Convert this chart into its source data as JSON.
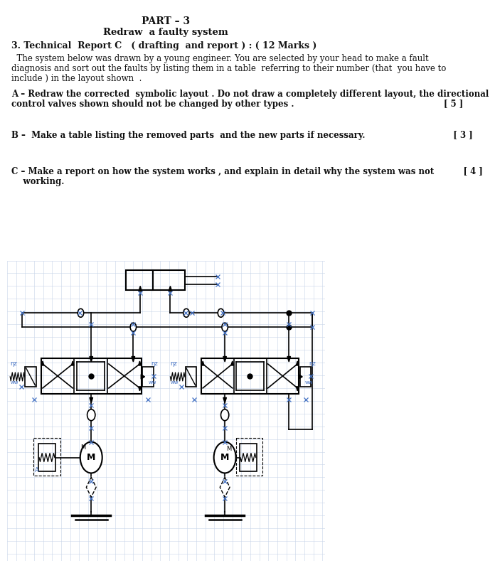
{
  "title1": "PART – 3",
  "title2": "Redraw  a faulty system",
  "section_title": "3. Technical  Report C   ( drafting  and report ) : ( 12 Marks )",
  "para1_line1": "  The system below was drawn by a young engineer. You are selected by your head to make a fault",
  "para1_line2": "diagnosis and sort out the faults by listing them in a table  referring to their number (that  you have to",
  "para1_line3": "include ) in the layout shown  .",
  "partA_line1": "A – Redraw the corrected  symbolic layout . Do not draw a completely different layout, the directional",
  "partA_line2": "control valves shown should not be changed by other types .                                                   [ 5 ]",
  "partB": "B –  Make a table listing the removed parts  and the new parts if necessary.                              [ 3 ]",
  "partC_line1": "C – Make a report on how the system works , and explain in detail why the system was not          [ 4 ]",
  "partC_line2": "    working.",
  "bg_color": "#ffffff",
  "grid_color": "#c8d4e8",
  "line_color": "#000000",
  "blue_marker": "#4472c4",
  "text_color": "#111111"
}
